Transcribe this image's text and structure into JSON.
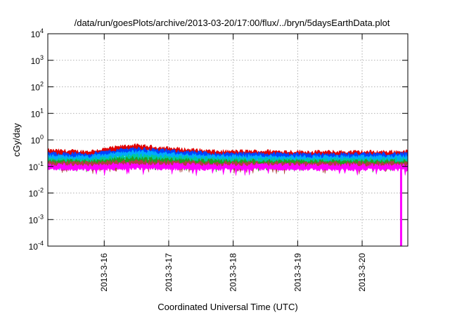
{
  "chart_data": {
    "type": "area",
    "title": "/data/run/goesPlots/archive/2013-03-20/17:00/flux/../bryn/5daysEarthData.plot",
    "xlabel": "Coordinated Universal Time (UTC)",
    "ylabel": "cGy/day",
    "yscale": "log",
    "ylim": [
      0.0001,
      10000
    ],
    "xlim": [
      "2013-03-15 03:00",
      "2013-03-20 17:00"
    ],
    "x_ticks": [
      "2013-3-16",
      "2013-3-17",
      "2013-3-18",
      "2013-3-19",
      "2013-3-20"
    ],
    "y_ticks": [
      {
        "base": "10",
        "exp": "-4",
        "value": 0.0001
      },
      {
        "base": "10",
        "exp": "-3",
        "value": 0.001
      },
      {
        "base": "10",
        "exp": "-2",
        "value": 0.01
      },
      {
        "base": "10",
        "exp": "-1",
        "value": 0.1
      },
      {
        "base": "10",
        "exp": "0",
        "value": 1
      },
      {
        "base": "10",
        "exp": "1",
        "value": 10
      },
      {
        "base": "10",
        "exp": "2",
        "value": 100
      },
      {
        "base": "10",
        "exp": "3",
        "value": 1000
      },
      {
        "base": "10",
        "exp": "4",
        "value": 10000
      }
    ],
    "grid": true,
    "series": [
      {
        "color": "#e00000",
        "x": [
          "2013-03-15 03:00",
          "2013-03-15 18:00",
          "2013-03-16 10:00",
          "2013-03-17 00:00",
          "2013-03-17 18:00",
          "2013-03-18 12:00",
          "2013-03-19 06:00",
          "2013-03-20 00:00",
          "2013-03-20 17:00"
        ],
        "values": [
          0.33,
          0.3,
          0.52,
          0.4,
          0.3,
          0.31,
          0.29,
          0.29,
          0.3
        ]
      },
      {
        "color": "#0044ff",
        "x": [
          "2013-03-15 03:00",
          "2013-03-15 18:00",
          "2013-03-16 10:00",
          "2013-03-17 00:00",
          "2013-03-17 18:00",
          "2013-03-18 12:00",
          "2013-03-19 06:00",
          "2013-03-20 00:00",
          "2013-03-20 17:00"
        ],
        "values": [
          0.26,
          0.24,
          0.4,
          0.32,
          0.25,
          0.25,
          0.24,
          0.24,
          0.25
        ]
      },
      {
        "color": "#00aaff",
        "x": [
          "2013-03-15 03:00",
          "2013-03-15 18:00",
          "2013-03-16 10:00",
          "2013-03-17 00:00",
          "2013-03-17 18:00",
          "2013-03-18 12:00",
          "2013-03-19 06:00",
          "2013-03-20 00:00",
          "2013-03-20 17:00"
        ],
        "values": [
          0.2,
          0.19,
          0.3,
          0.25,
          0.2,
          0.2,
          0.19,
          0.19,
          0.2
        ]
      },
      {
        "color": "#00c8a0",
        "x": [
          "2013-03-15 03:00",
          "2013-03-15 18:00",
          "2013-03-16 10:00",
          "2013-03-17 00:00",
          "2013-03-17 18:00",
          "2013-03-18 12:00",
          "2013-03-19 06:00",
          "2013-03-20 00:00",
          "2013-03-20 17:00"
        ],
        "values": [
          0.16,
          0.15,
          0.22,
          0.19,
          0.16,
          0.16,
          0.15,
          0.15,
          0.16
        ]
      },
      {
        "color": "#20a020",
        "x": [
          "2013-03-15 03:00",
          "2013-03-15 18:00",
          "2013-03-16 10:00",
          "2013-03-17 00:00",
          "2013-03-17 18:00",
          "2013-03-18 12:00",
          "2013-03-19 06:00",
          "2013-03-20 00:00",
          "2013-03-20 17:00"
        ],
        "values": [
          0.135,
          0.13,
          0.17,
          0.15,
          0.135,
          0.135,
          0.13,
          0.13,
          0.135
        ]
      },
      {
        "color": "#b04040",
        "x": [
          "2013-03-15 03:00",
          "2013-03-15 18:00",
          "2013-03-16 10:00",
          "2013-03-17 00:00",
          "2013-03-17 18:00",
          "2013-03-18 12:00",
          "2013-03-19 06:00",
          "2013-03-20 00:00",
          "2013-03-20 17:00"
        ],
        "values": [
          0.115,
          0.112,
          0.13,
          0.122,
          0.115,
          0.115,
          0.112,
          0.112,
          0.115
        ]
      },
      {
        "color": "#ff00ff",
        "x": [
          "2013-03-15 03:00",
          "2013-03-15 18:00",
          "2013-03-16 10:00",
          "2013-03-17 00:00",
          "2013-03-17 18:00",
          "2013-03-18 12:00",
          "2013-03-19 06:00",
          "2013-03-20 00:00",
          "2013-03-20 17:00"
        ],
        "values": [
          0.095,
          0.092,
          0.1,
          0.097,
          0.093,
          0.094,
          0.092,
          0.092,
          0.09
        ],
        "dropout": {
          "x": "2013-03-20 14:30",
          "value": 0.0001
        }
      }
    ]
  }
}
